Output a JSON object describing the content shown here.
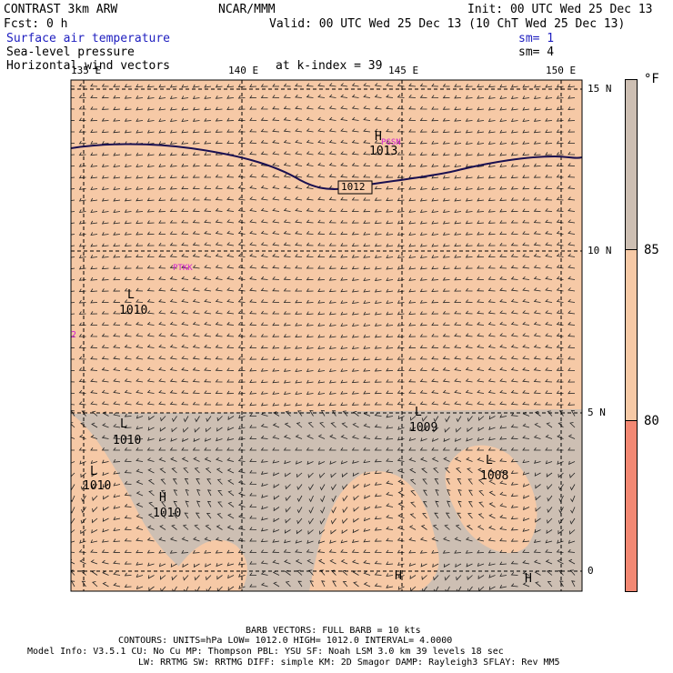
{
  "header": {
    "model": "CONTRAST  3km ARW",
    "center": "NCAR/MMM",
    "init": "Init: 00 UTC Wed 25 Dec 13",
    "fcst": "Fcst:   0 h",
    "valid": "Valid: 00 UTC Wed 25 Dec 13 (10 ChT Wed 25 Dec 13)",
    "field1": "Surface air temperature",
    "field1_sm": "sm= 1",
    "field2": "Sea-level pressure",
    "field2_sm": "sm= 4",
    "field3": "Horizontal wind vectors",
    "kindex": "at k-index =  39"
  },
  "map": {
    "lon_labels": [
      "135 E",
      "140 E",
      "145 E",
      "150 E"
    ],
    "lat_labels": [
      "15 N",
      "10 N",
      "5 N",
      "0"
    ],
    "isobar_label": "1012",
    "pressure_centers": [
      {
        "letter": "H",
        "value": "1013"
      },
      {
        "letter": "L",
        "value": "1010"
      },
      {
        "letter": "L",
        "value": "1009"
      },
      {
        "letter": "L",
        "value": "1010"
      },
      {
        "letter": "L",
        "value": "1008"
      },
      {
        "letter": "L",
        "value": "1010"
      },
      {
        "letter": "H",
        "value": "1010"
      },
      {
        "letter": "H",
        "value": ""
      },
      {
        "letter": "H",
        "value": ""
      }
    ],
    "station_labels": [
      "PGSN",
      "PTKK",
      "2"
    ],
    "colors": {
      "warm": "#f6c9a6",
      "land": "#cdbfb3",
      "line": "#1a1050",
      "magenta": "#d020d0"
    }
  },
  "legend": {
    "unit": "°F",
    "labels": [
      "85",
      "80"
    ],
    "colors": [
      "#cdbfb3",
      "#f6c9a6",
      "#f28873"
    ]
  },
  "footer": {
    "line1": "BARB VECTORS:  FULL BARB = 10 kts",
    "line2": "CONTOURS:  UNITS=hPa  LOW=   1012.0      HIGH=   1012.0      INTERVAL=    4.0000",
    "line3": "Model Info: V3.5.1    CU: No Cu     MP: Thompson     PBL: YSU      SF: Noah LSM    3.0 km   39 levels    18 sec",
    "line4": "LW: RRTMG    SW: RRTMG   DIFF: simple KM: 2D Smagor DAMP: Rayleigh3  SFLAY: Rev MM5"
  }
}
